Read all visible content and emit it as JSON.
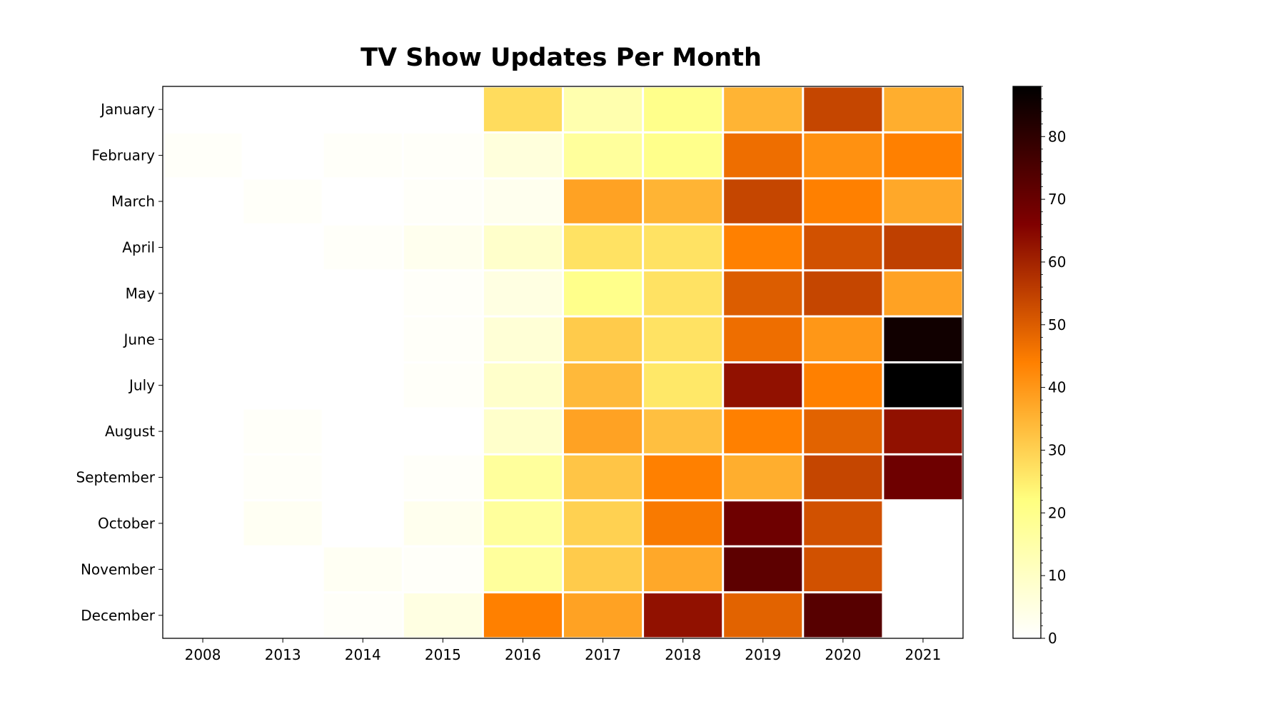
{
  "chart_data": {
    "type": "heatmap",
    "title": "TV Show Updates Per Month",
    "xlabel": "",
    "ylabel": "",
    "x": [
      "2008",
      "2013",
      "2014",
      "2015",
      "2016",
      "2017",
      "2018",
      "2019",
      "2020",
      "2021"
    ],
    "y": [
      "January",
      "February",
      "March",
      "April",
      "May",
      "June",
      "July",
      "August",
      "September",
      "October",
      "November",
      "December"
    ],
    "values": [
      [
        0,
        0,
        0,
        0,
        28,
        14,
        20,
        35,
        54,
        36
      ],
      [
        1,
        0,
        1,
        1,
        6,
        17,
        20,
        47,
        41,
        44
      ],
      [
        0,
        1,
        0,
        1,
        3,
        38,
        35,
        54,
        44,
        37
      ],
      [
        0,
        0,
        1,
        3,
        9,
        27,
        27,
        44,
        52,
        55
      ],
      [
        0,
        0,
        0,
        1,
        5,
        20,
        27,
        50,
        54,
        38
      ],
      [
        0,
        0,
        0,
        1,
        7,
        31,
        27,
        47,
        40,
        85
      ],
      [
        0,
        0,
        0,
        1,
        9,
        34,
        26,
        63,
        44,
        88
      ],
      [
        0,
        1,
        0,
        0,
        9,
        38,
        33,
        44,
        49,
        63
      ],
      [
        0,
        1,
        0,
        1,
        17,
        32,
        44,
        36,
        54,
        69
      ],
      [
        0,
        2,
        0,
        3,
        17,
        30,
        45,
        69,
        52,
        null
      ],
      [
        0,
        0,
        2,
        1,
        17,
        31,
        37,
        72,
        52,
        null
      ],
      [
        0,
        0,
        1,
        5,
        44,
        38,
        63,
        49,
        73,
        null
      ]
    ],
    "colormap": "afmhot_r",
    "colorbar": {
      "ticks": [
        0,
        10,
        20,
        30,
        40,
        50,
        60,
        70,
        80
      ],
      "range": [
        0,
        88
      ]
    },
    "grid": false
  }
}
